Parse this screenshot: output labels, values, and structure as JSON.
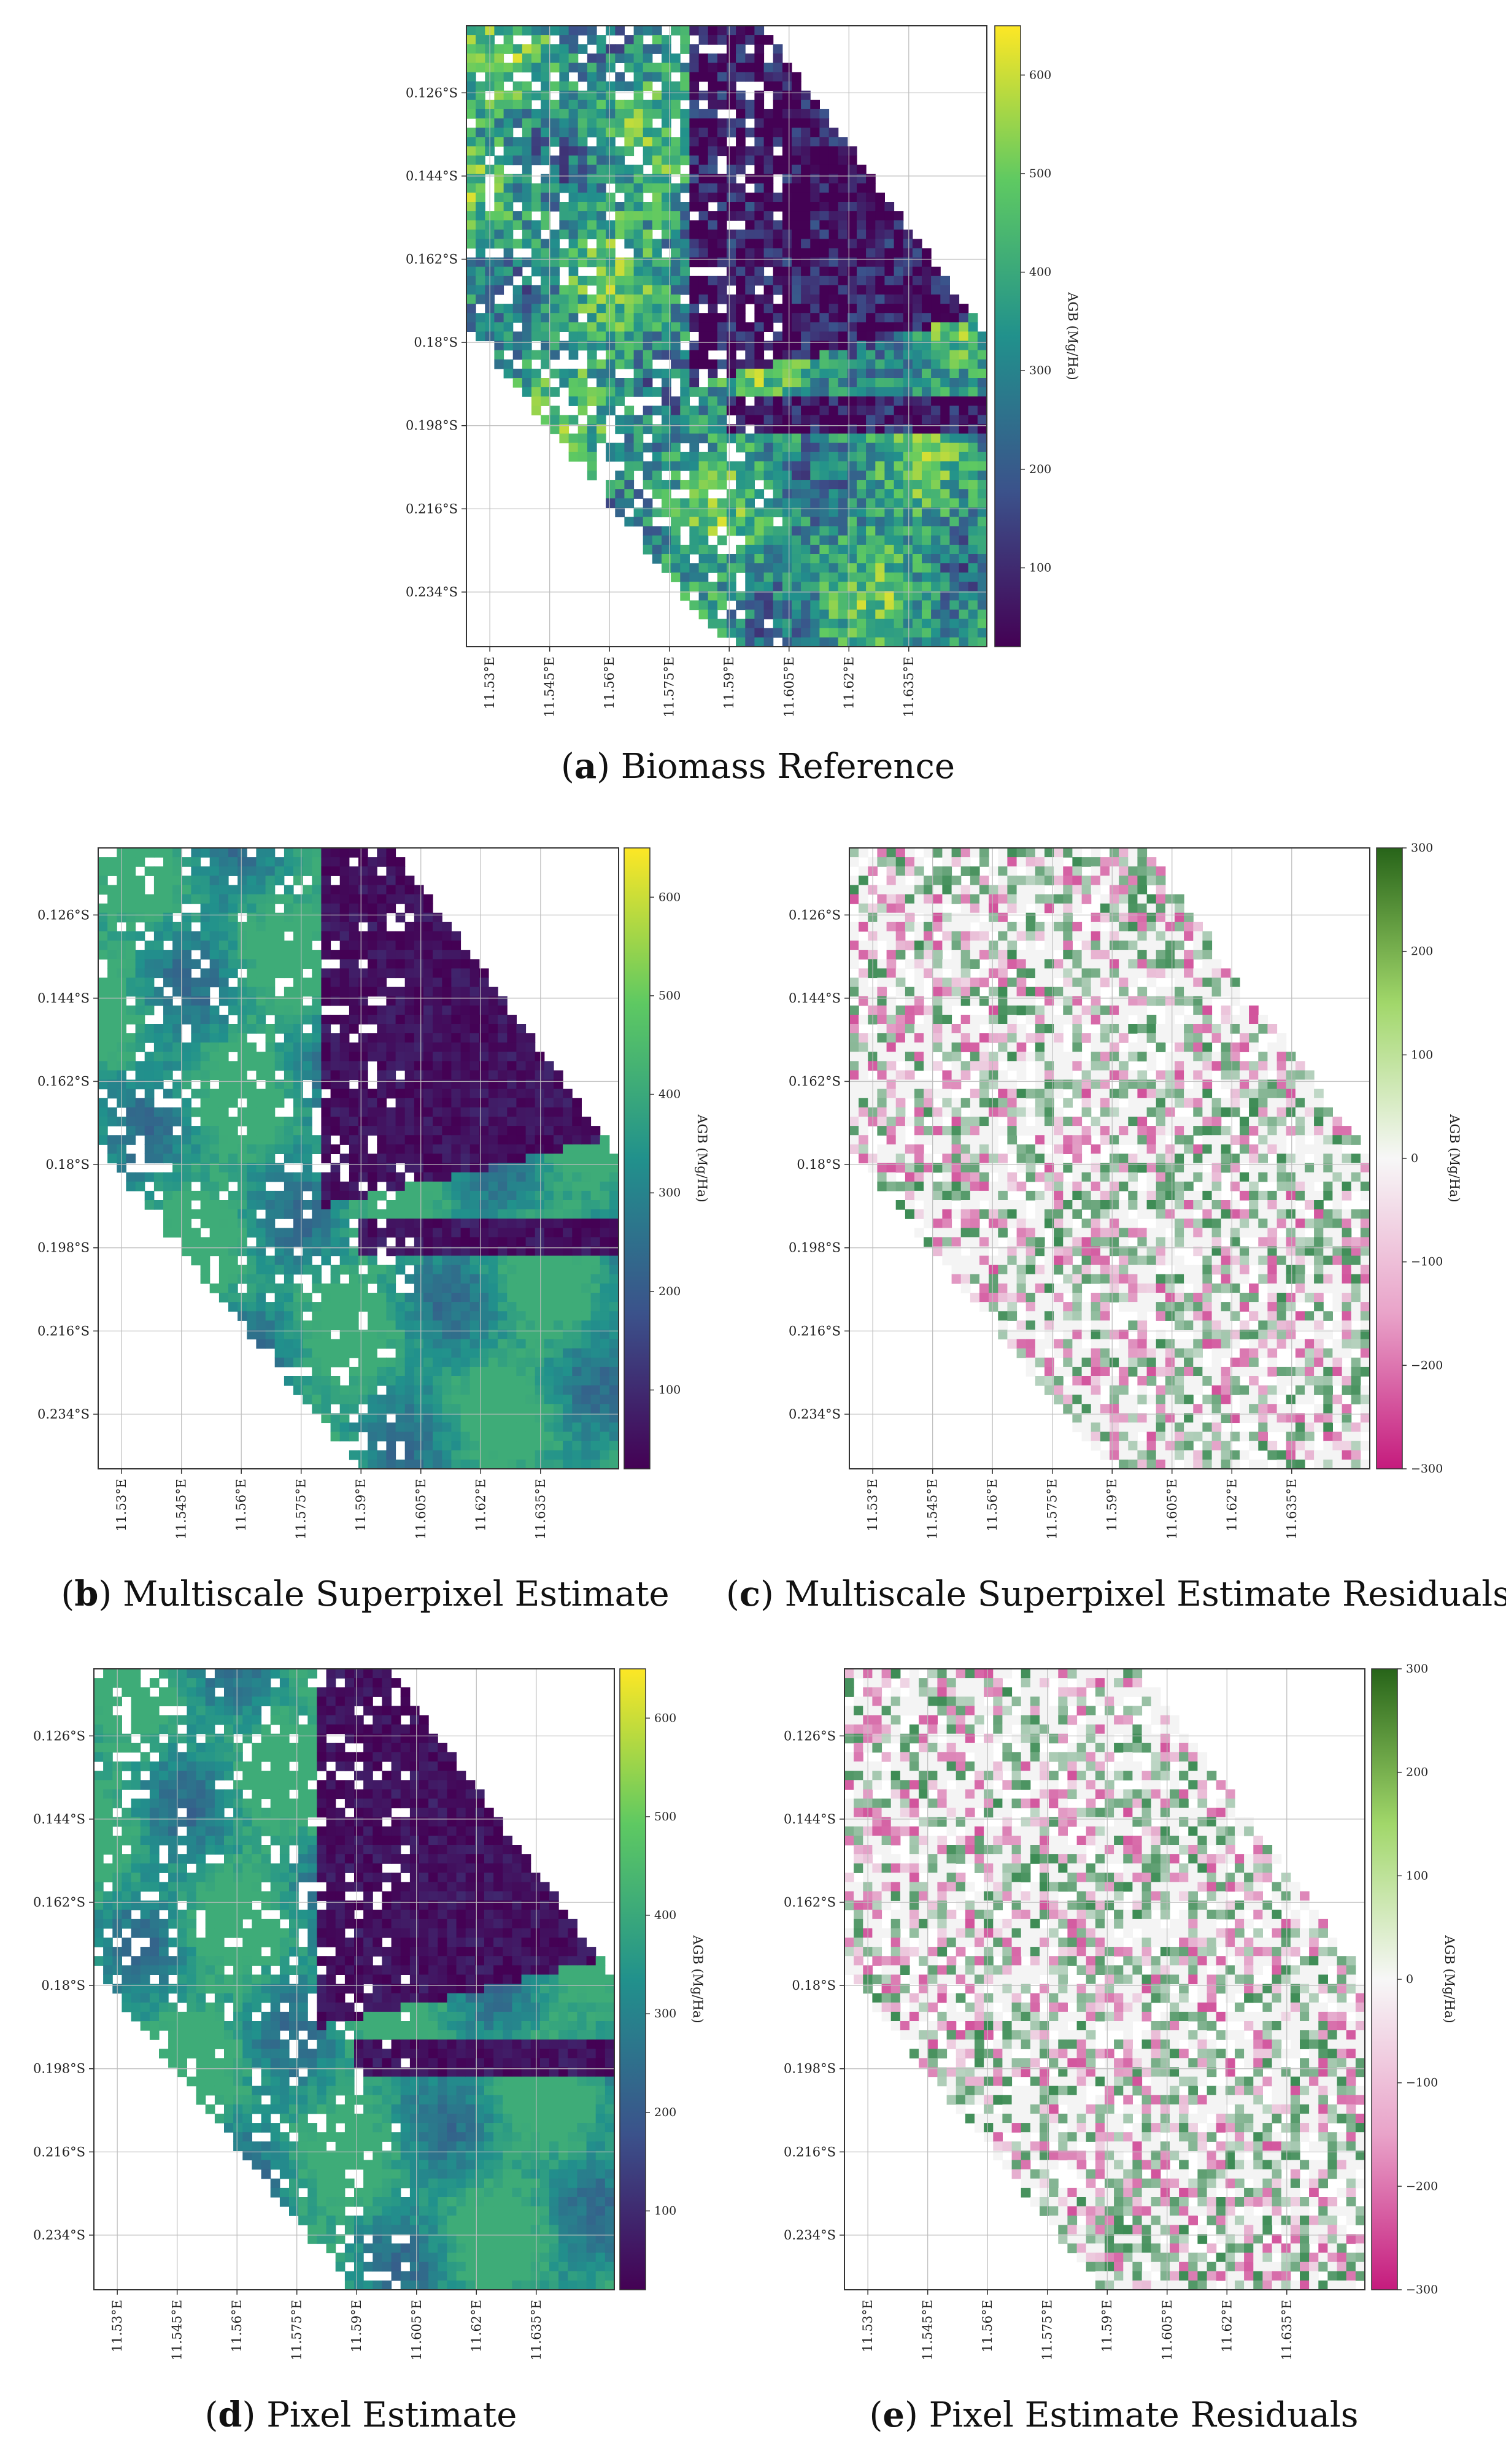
{
  "figure": {
    "x_ticks": [
      "11.53°E",
      "11.545°E",
      "11.56°E",
      "11.575°E",
      "11.59°E",
      "11.605°E",
      "11.62°E",
      "11.635°E"
    ],
    "y_ticks": [
      "0.126°S",
      "0.144°S",
      "0.162°S",
      "0.18°S",
      "0.198°S",
      "0.216°S",
      "0.234°S"
    ],
    "colorbar_label": "AGB (Mg/Ha)",
    "panels": [
      {
        "id": "a",
        "letter": "a",
        "caption": "Biomass Reference",
        "type": "biomass",
        "cbar_ticks": [
          "600",
          "500",
          "400",
          "300",
          "200",
          "100"
        ]
      },
      {
        "id": "b",
        "letter": "b",
        "caption": "Multiscale Superpixel Estimate",
        "type": "biomass",
        "cbar_ticks": [
          "600",
          "500",
          "400",
          "300",
          "200",
          "100"
        ]
      },
      {
        "id": "c",
        "letter": "c",
        "caption": "Multiscale Superpixel Estimate Residuals",
        "type": "residual",
        "cbar_ticks": [
          "300",
          "200",
          "100",
          "0",
          "−100",
          "−200",
          "−300"
        ]
      },
      {
        "id": "d",
        "letter": "d",
        "caption": "Pixel Estimate",
        "type": "biomass",
        "cbar_ticks": [
          "600",
          "500",
          "400",
          "300",
          "200",
          "100"
        ]
      },
      {
        "id": "e",
        "letter": "e",
        "caption": "Pixel Estimate Residuals",
        "type": "residual",
        "cbar_ticks": [
          "300",
          "200",
          "100",
          "0",
          "−100",
          "−200",
          "−300"
        ]
      }
    ],
    "colors": {
      "viridis": [
        "#440154",
        "#3b528b",
        "#21918c",
        "#5ec962",
        "#fde725"
      ],
      "residual_pos": "#1b7837",
      "residual_neg": "#c51b7d",
      "residual_zero": "#f5f5f5"
    }
  }
}
